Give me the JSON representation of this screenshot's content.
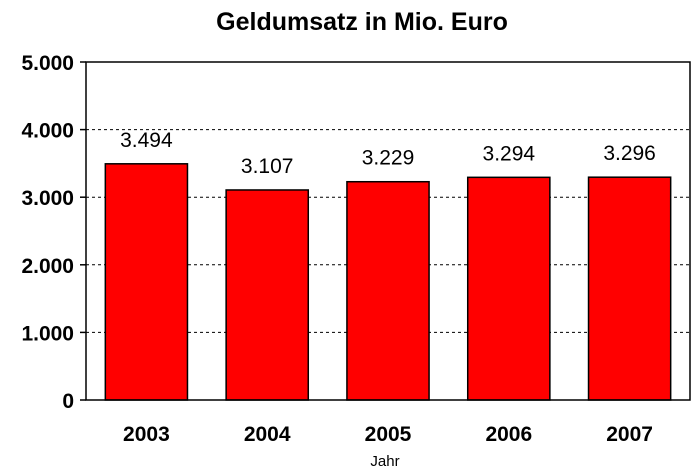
{
  "chart_data": {
    "type": "bar",
    "title": "Geldumsatz in Mio. Euro",
    "xlabel": "Jahr",
    "ylabel": "",
    "categories": [
      "2003",
      "2004",
      "2005",
      "2006",
      "2007"
    ],
    "values": [
      3494,
      3107,
      3229,
      3294,
      3296
    ],
    "data_labels": [
      "3.494",
      "3.107",
      "3.229",
      "3.294",
      "3.296"
    ],
    "ylim": [
      0,
      5000
    ],
    "yticks": [
      0,
      1000,
      2000,
      3000,
      4000,
      5000
    ],
    "ytick_labels": [
      "0",
      "1.000",
      "2.000",
      "3.000",
      "4.000",
      "5.000"
    ],
    "grid": "horizontal dashed",
    "legend": "none",
    "colors": {
      "bar": "#ff0000",
      "bar_edge": "#000000",
      "grid": "#000000"
    }
  }
}
